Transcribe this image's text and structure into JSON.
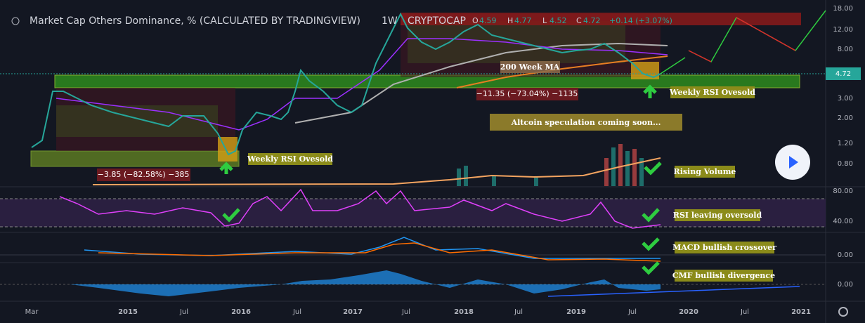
{
  "header": {
    "title": "Market Cap Others Dominance, % (CALCULATED BY TRADINGVIEW)",
    "interval": "1W",
    "exchange": "CRYPTOCAP",
    "ohlc": [
      {
        "label": "O",
        "value": "4.59"
      },
      {
        "label": "H",
        "value": "4.77"
      },
      {
        "label": "L",
        "value": "4.52"
      },
      {
        "label": "C",
        "value": "4.72"
      }
    ],
    "change": "+0.14 (+3.07%)"
  },
  "price_axis": [
    "18.00",
    "12.00",
    "8.00",
    "3.00",
    "2.00",
    "1.20",
    "0.80"
  ],
  "last_price": "4.72",
  "rsi_axis": [
    "80.00",
    "40.00"
  ],
  "macd_axis": [
    "0.00"
  ],
  "cmf_axis": [
    "0.00"
  ],
  "time_axis": [
    "Mar",
    "2015",
    "Jul",
    "2016",
    "Jul",
    "2017",
    "Jul",
    "2018",
    "Jul",
    "2019",
    "Jul",
    "2020",
    "Jul",
    "2021"
  ],
  "annotations": {
    "ma_label": "200 Week MA",
    "drop_2018": "−11.35 (−73.04%) −1135",
    "drop_2015": "−3.85 (−82.58%) −385",
    "rsi_oversold_2019": "Weekly RSI Ovesold",
    "rsi_oversold_2015": "Weekly RSI Ovesold",
    "headline": "Altcoin speculation coming soon...",
    "volume": "Rising Volume",
    "rsi": "RSI leaving oversold",
    "macd": "MACD bullish crossover",
    "cmf": "CMF bullish divergence"
  }
}
